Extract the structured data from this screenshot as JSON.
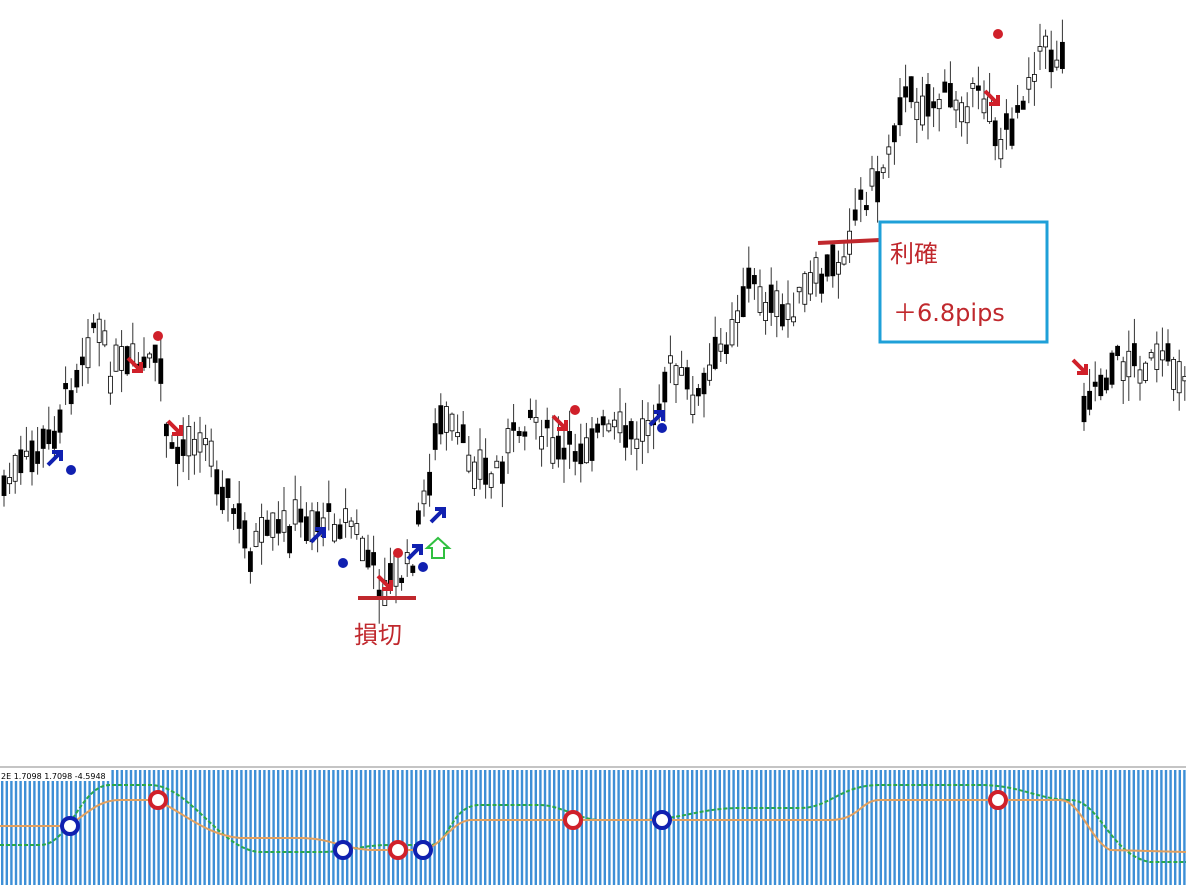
{
  "annotations": {
    "stop_loss": "損切",
    "take_profit": "利確",
    "pips": "＋6.8pips"
  },
  "indicator": {
    "label": "2E 1.7098 1.7098 -4.5948"
  }
}
